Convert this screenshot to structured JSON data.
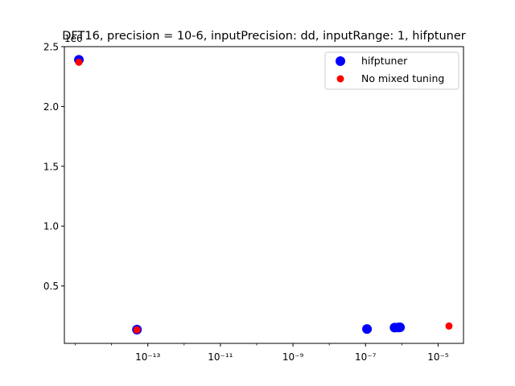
{
  "chart_data": {
    "type": "scatter",
    "title": "DFT16, precision = 10-6, inputPrecision: dd, inputRange: 1, hifptuner",
    "xlabel": "",
    "ylabel": "",
    "xscale": "log",
    "xlim_log10": [
      -15.3,
      -4.3
    ],
    "ylim": [
      0.02,
      2.5
    ],
    "y_offset_label": "1e6",
    "x_ticks": [
      {
        "exp": -13,
        "label": "10⁻¹³"
      },
      {
        "exp": -11,
        "label": "10⁻¹¹"
      },
      {
        "exp": -9,
        "label": "10⁻⁹"
      },
      {
        "exp": -7,
        "label": "10⁻⁷"
      },
      {
        "exp": -5,
        "label": "10⁻⁵"
      }
    ],
    "y_ticks": [
      {
        "value": 0.5,
        "label": "0.5"
      },
      {
        "value": 1.0,
        "label": "1.0"
      },
      {
        "value": 1.5,
        "label": "1.5"
      },
      {
        "value": 2.0,
        "label": "2.0"
      },
      {
        "value": 2.5,
        "label": "2.5"
      }
    ],
    "legend_position": "top-right",
    "series": [
      {
        "name": "hifptuner",
        "color": "#0000ff",
        "marker": "large-circle",
        "points": [
          {
            "x_log10": -14.9,
            "y": 2.39
          },
          {
            "x_log10": -13.3,
            "y": 0.135
          },
          {
            "x_log10": -6.96,
            "y": 0.14
          },
          {
            "x_log10": -6.2,
            "y": 0.152
          },
          {
            "x_log10": -6.1,
            "y": 0.153
          },
          {
            "x_log10": -6.05,
            "y": 0.154
          }
        ]
      },
      {
        "name": "No mixed tuning",
        "color": "#ff0000",
        "marker": "small-circle",
        "points": [
          {
            "x_log10": -14.9,
            "y": 2.37
          },
          {
            "x_log10": -13.3,
            "y": 0.133
          },
          {
            "x_log10": -4.7,
            "y": 0.165
          }
        ]
      }
    ]
  }
}
